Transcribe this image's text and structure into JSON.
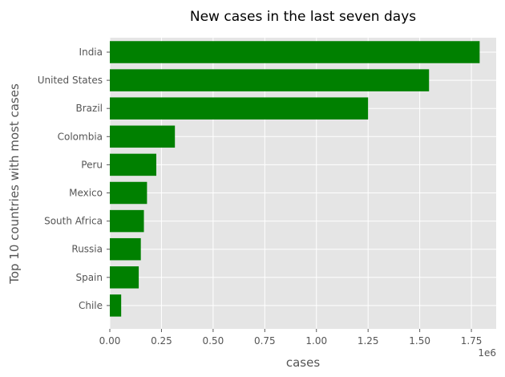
{
  "chart_data": {
    "type": "bar",
    "orientation": "horizontal",
    "title": "New cases in the last seven days",
    "xlabel": "cases",
    "ylabel": "Top 10 countries with most cases",
    "x_scale_label": "1e6",
    "categories": [
      "India",
      "United States",
      "Brazil",
      "Colombia",
      "Peru",
      "Mexico",
      "South Africa",
      "Russia",
      "Spain",
      "Chile"
    ],
    "values": [
      1790000,
      1545000,
      1250000,
      315000,
      225000,
      180000,
      165000,
      150000,
      140000,
      55000
    ],
    "xlim": [
      0,
      1870000
    ],
    "xticks": [
      0,
      250000,
      500000,
      750000,
      1000000,
      1250000,
      1500000,
      1750000
    ],
    "xtick_labels": [
      "0.00",
      "0.25",
      "0.50",
      "0.75",
      "1.00",
      "1.25",
      "1.50",
      "1.75"
    ],
    "bar_color": "#008000",
    "background_color": "#e5e5e5",
    "grid": true,
    "legend": "none"
  }
}
